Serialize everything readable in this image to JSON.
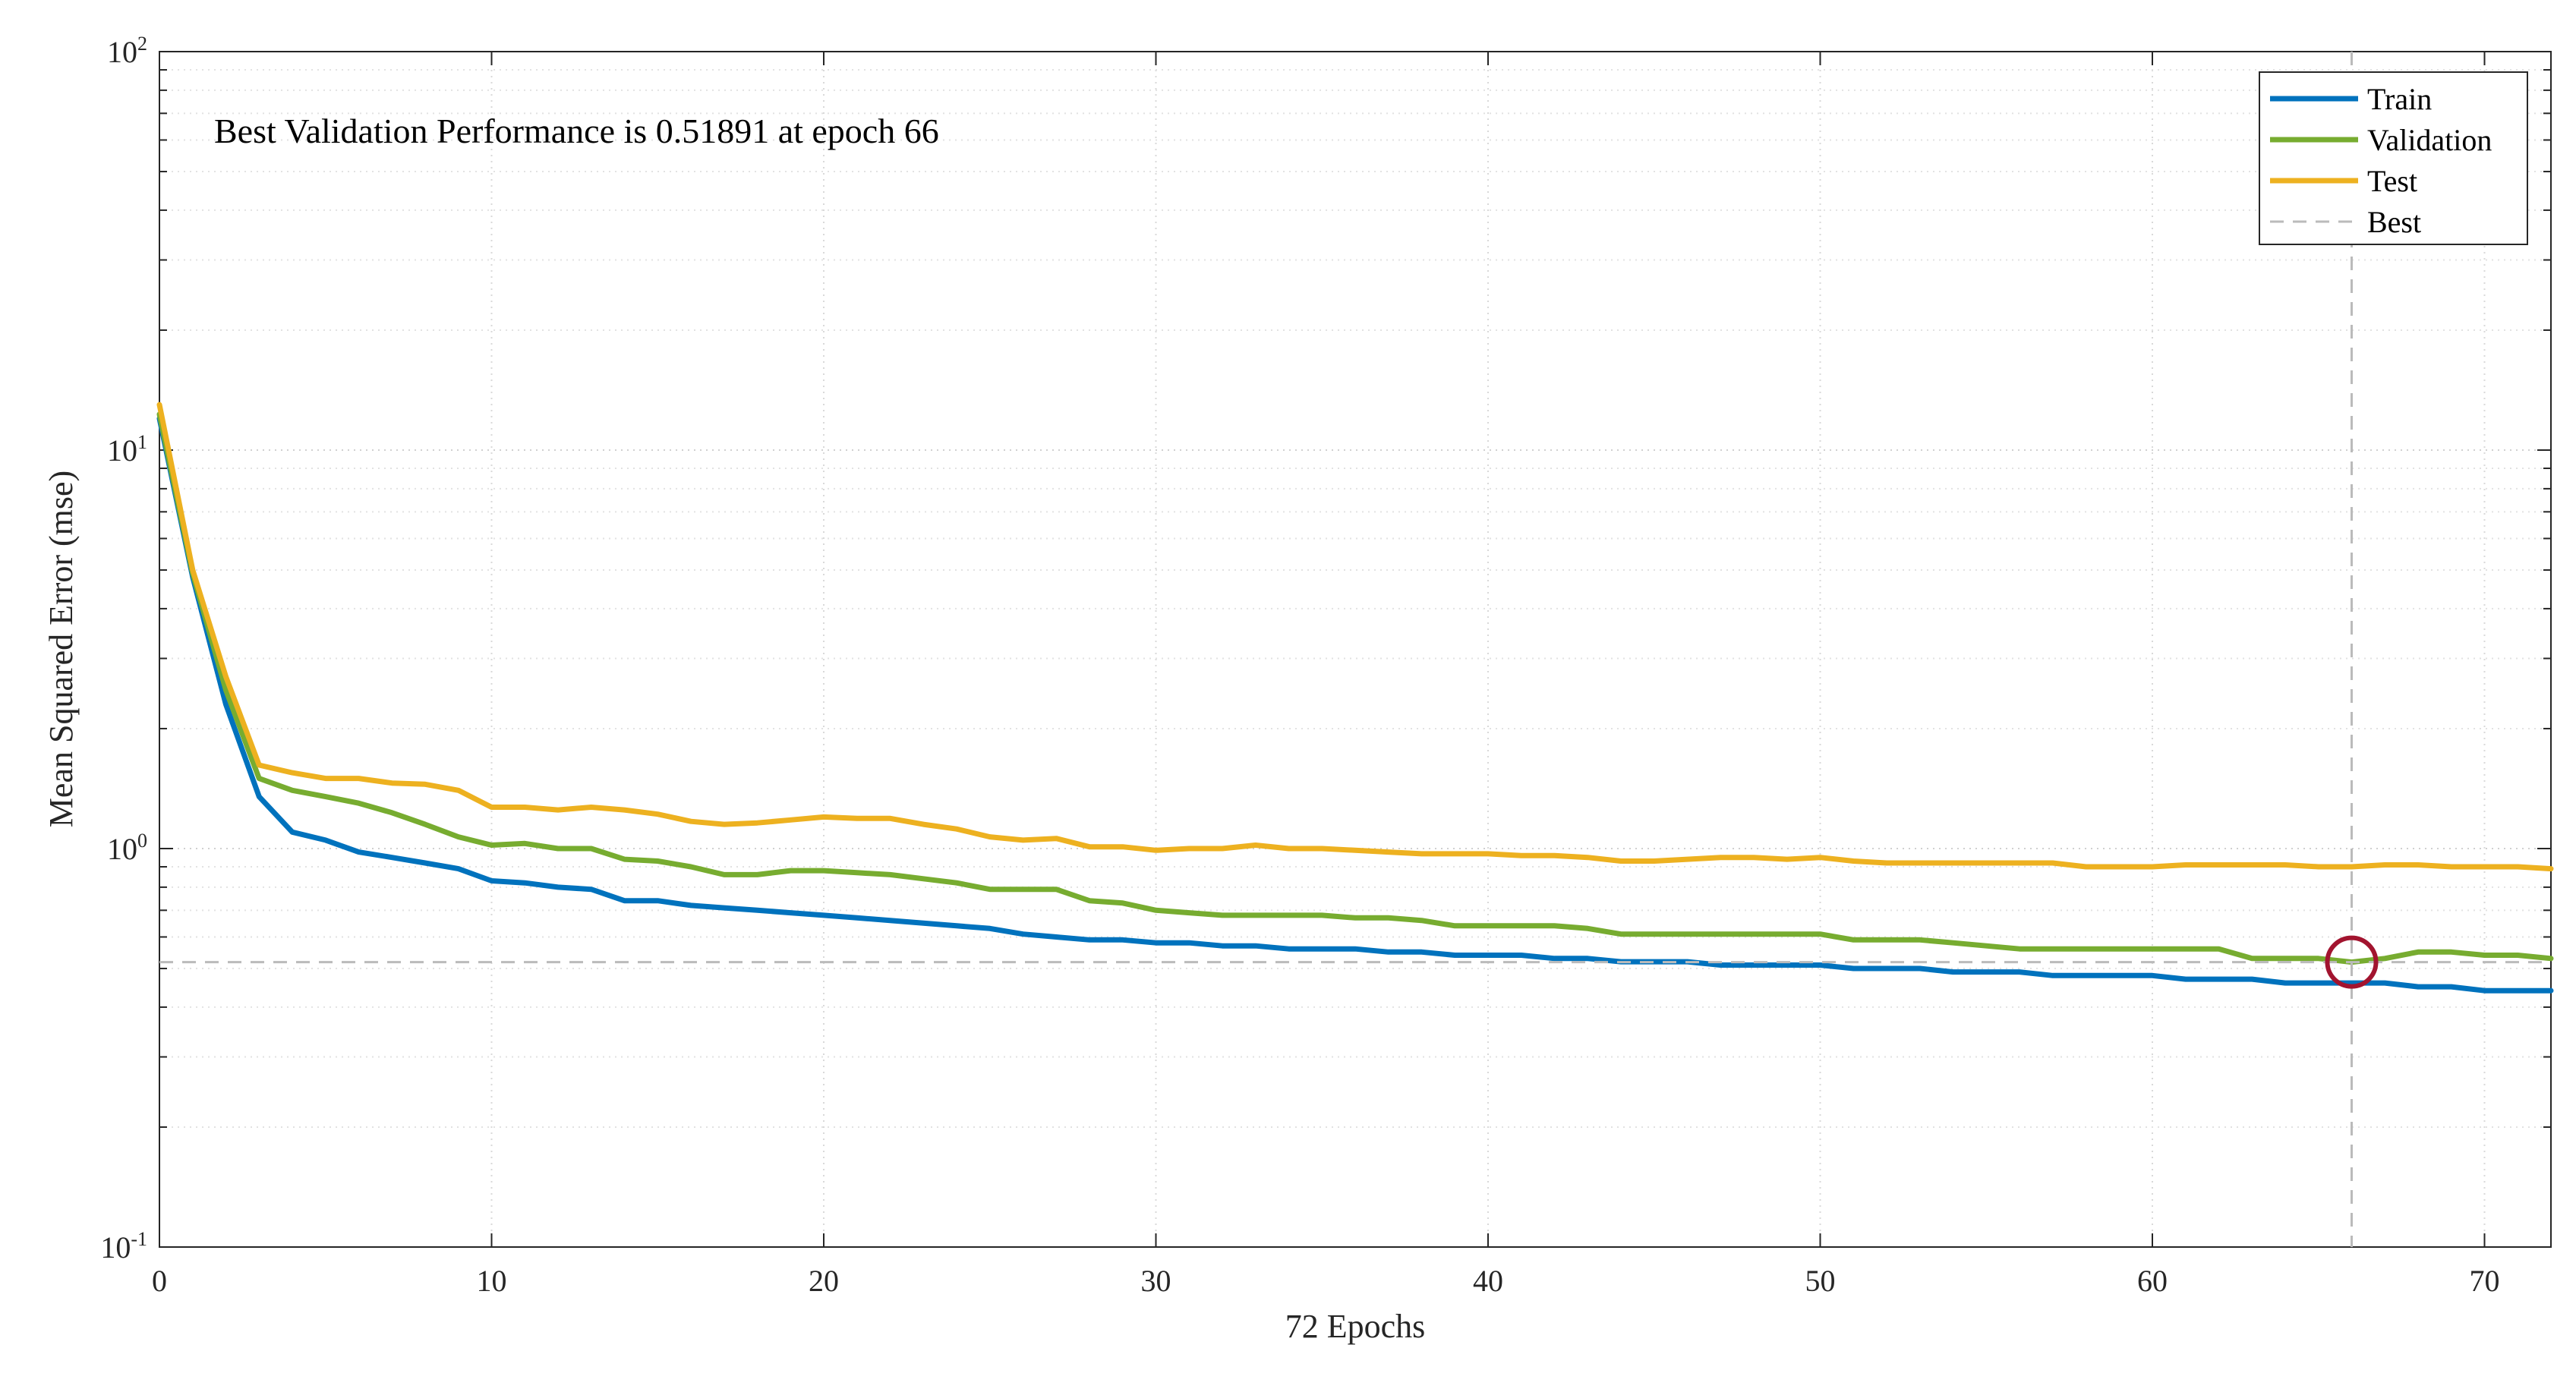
{
  "chart_data": {
    "type": "line",
    "title": "",
    "annotation": "Best Validation Performance is 0.51891 at epoch 66",
    "xlabel": "72 Epochs",
    "ylabel": "Mean Squared Error  (mse)",
    "xlim": [
      0,
      72
    ],
    "ylim": [
      0.1,
      100
    ],
    "yscale": "log",
    "grid": true,
    "legend_position": "top-right",
    "x_ticks": [
      0,
      10,
      20,
      30,
      40,
      50,
      60,
      70
    ],
    "y_ticks": [
      {
        "value": 0.1,
        "base": "10",
        "exp": "-1"
      },
      {
        "value": 1,
        "base": "10",
        "exp": "0"
      },
      {
        "value": 10,
        "base": "10",
        "exp": "1"
      },
      {
        "value": 100,
        "base": "10",
        "exp": "2"
      }
    ],
    "series": [
      {
        "name": "Train",
        "color": "#0072BD",
        "values": [
          12.0,
          4.8,
          2.3,
          1.35,
          1.1,
          1.05,
          0.98,
          0.95,
          0.92,
          0.89,
          0.83,
          0.82,
          0.8,
          0.79,
          0.74,
          0.74,
          0.72,
          0.71,
          0.7,
          0.69,
          0.68,
          0.67,
          0.66,
          0.65,
          0.64,
          0.63,
          0.61,
          0.6,
          0.59,
          0.59,
          0.58,
          0.58,
          0.57,
          0.57,
          0.56,
          0.56,
          0.56,
          0.55,
          0.55,
          0.54,
          0.54,
          0.54,
          0.53,
          0.53,
          0.52,
          0.52,
          0.52,
          0.51,
          0.51,
          0.51,
          0.51,
          0.5,
          0.5,
          0.5,
          0.49,
          0.49,
          0.49,
          0.48,
          0.48,
          0.48,
          0.48,
          0.47,
          0.47,
          0.47,
          0.46,
          0.46,
          0.46,
          0.46,
          0.45,
          0.45,
          0.44,
          0.44,
          0.44
        ]
      },
      {
        "name": "Validation",
        "color": "#77AC30",
        "values": [
          12.3,
          4.9,
          2.5,
          1.5,
          1.4,
          1.35,
          1.3,
          1.23,
          1.15,
          1.07,
          1.02,
          1.03,
          1.0,
          1.0,
          0.94,
          0.93,
          0.9,
          0.86,
          0.86,
          0.88,
          0.88,
          0.87,
          0.86,
          0.84,
          0.82,
          0.79,
          0.79,
          0.79,
          0.74,
          0.73,
          0.7,
          0.69,
          0.68,
          0.68,
          0.68,
          0.68,
          0.67,
          0.67,
          0.66,
          0.64,
          0.64,
          0.64,
          0.64,
          0.63,
          0.61,
          0.61,
          0.61,
          0.61,
          0.61,
          0.61,
          0.61,
          0.59,
          0.59,
          0.59,
          0.58,
          0.57,
          0.56,
          0.56,
          0.56,
          0.56,
          0.56,
          0.56,
          0.56,
          0.53,
          0.53,
          0.53,
          0.51891,
          0.53,
          0.55,
          0.55,
          0.54,
          0.54,
          0.53
        ]
      },
      {
        "name": "Test",
        "color": "#EDB120",
        "values": [
          13.0,
          5.0,
          2.7,
          1.62,
          1.55,
          1.5,
          1.5,
          1.46,
          1.45,
          1.4,
          1.27,
          1.27,
          1.25,
          1.27,
          1.25,
          1.22,
          1.17,
          1.15,
          1.16,
          1.18,
          1.2,
          1.19,
          1.19,
          1.15,
          1.12,
          1.07,
          1.05,
          1.06,
          1.01,
          1.01,
          0.99,
          1.0,
          1.0,
          1.02,
          1.0,
          1.0,
          0.99,
          0.98,
          0.97,
          0.97,
          0.97,
          0.96,
          0.96,
          0.95,
          0.93,
          0.93,
          0.94,
          0.95,
          0.95,
          0.94,
          0.95,
          0.93,
          0.92,
          0.92,
          0.92,
          0.92,
          0.92,
          0.92,
          0.9,
          0.9,
          0.9,
          0.91,
          0.91,
          0.91,
          0.91,
          0.9,
          0.9,
          0.91,
          0.91,
          0.9,
          0.9,
          0.9,
          0.89
        ]
      }
    ],
    "best": {
      "name": "Best",
      "epoch": 66,
      "value": 0.51891,
      "color": "#BBBBBB",
      "marker_color": "#A2142F"
    }
  }
}
